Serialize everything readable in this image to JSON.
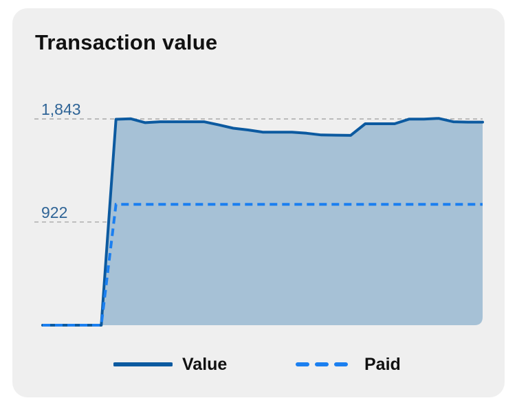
{
  "card": {
    "title": "Transaction value"
  },
  "chart_data": {
    "type": "area",
    "title": "Transaction value",
    "xlabel": "",
    "ylabel": "",
    "ylim": [
      0,
      1843
    ],
    "grid": true,
    "legend_position": "bottom",
    "y_ticks": [
      {
        "value": 1843,
        "label": "1,843"
      },
      {
        "value": 922,
        "label": "922"
      }
    ],
    "x": [
      0,
      1,
      2,
      3,
      4,
      5,
      6,
      7,
      8,
      9,
      10,
      11,
      12,
      13,
      14,
      15,
      16,
      17,
      18,
      19,
      20,
      21,
      22,
      23,
      24,
      25,
      26,
      27,
      28,
      29,
      30
    ],
    "series": [
      {
        "name": "Value",
        "style": "solid-area",
        "color": "#0c5aa0",
        "fill": "#a6c1d6",
        "values": [
          0,
          0,
          0,
          0,
          0,
          1840,
          1845,
          1810,
          1818,
          1818,
          1818,
          1818,
          1790,
          1760,
          1745,
          1725,
          1725,
          1725,
          1715,
          1700,
          1698,
          1696,
          1800,
          1800,
          1800,
          1842,
          1842,
          1848,
          1818,
          1815,
          1815
        ]
      },
      {
        "name": "Paid",
        "style": "dashed",
        "color": "#1b7ff0",
        "values": [
          0,
          0,
          0,
          0,
          0,
          1080,
          1080,
          1080,
          1080,
          1080,
          1080,
          1080,
          1080,
          1080,
          1080,
          1080,
          1080,
          1080,
          1080,
          1080,
          1080,
          1080,
          1080,
          1080,
          1080,
          1080,
          1080,
          1080,
          1080,
          1080,
          1080
        ]
      }
    ]
  },
  "colors": {
    "card_background": "#efefef",
    "grid": "#9a9a9a",
    "tick_label": "#2f6496"
  }
}
